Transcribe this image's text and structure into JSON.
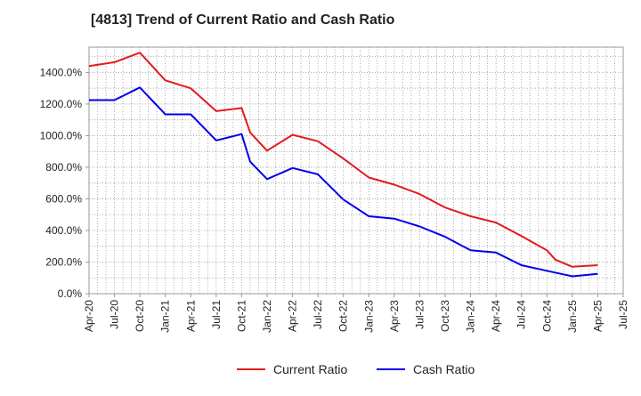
{
  "chart_data": {
    "type": "line",
    "title": "[4813]  Trend of Current Ratio and Cash Ratio",
    "xlabel": "",
    "ylabel": "",
    "categories": [
      "Apr-20",
      "Jul-20",
      "Oct-20",
      "Jan-21",
      "Apr-21",
      "Jul-21",
      "Oct-21",
      "Jan-22",
      "Apr-22",
      "Jul-22",
      "Oct-22",
      "Jan-23",
      "Apr-23",
      "Jul-23",
      "Oct-23",
      "Jan-24",
      "Apr-24",
      "Jul-24",
      "Oct-24",
      "Jan-25",
      "Apr-25",
      "Jul-25"
    ],
    "y_ticks": [
      "0.0%",
      "200.0%",
      "400.0%",
      "600.0%",
      "800.0%",
      "1000.0%",
      "1200.0%",
      "1400.0%"
    ],
    "ylim": [
      0,
      1560
    ],
    "grid": true,
    "legend": "bottom-center",
    "series": [
      {
        "name": "Current Ratio",
        "color": "#e31a1c",
        "points": [
          [
            "Apr-20",
            1440
          ],
          [
            "Jul-20",
            1465
          ],
          [
            "Oct-20",
            1525
          ],
          [
            "Jan-21",
            1350
          ],
          [
            "Apr-21",
            1300
          ],
          [
            "Jul-21",
            1155
          ],
          [
            "Oct-21",
            1175
          ],
          [
            "Nov-21",
            1020
          ],
          [
            "Jan-22",
            905
          ],
          [
            "Apr-22",
            1005
          ],
          [
            "Jul-22",
            965
          ],
          [
            "Oct-22",
            855
          ],
          [
            "Jan-23",
            735
          ],
          [
            "Apr-23",
            690
          ],
          [
            "Jul-23",
            630
          ],
          [
            "Oct-23",
            545
          ],
          [
            "Jan-24",
            490
          ],
          [
            "Apr-24",
            450
          ],
          [
            "Jul-24",
            365
          ],
          [
            "Oct-24",
            275
          ],
          [
            "Nov-24",
            215
          ],
          [
            "Jan-25",
            170
          ],
          [
            "Apr-25",
            180
          ]
        ]
      },
      {
        "name": "Cash Ratio",
        "color": "#0000ee",
        "points": [
          [
            "Apr-20",
            1225
          ],
          [
            "Jul-20",
            1225
          ],
          [
            "Oct-20",
            1305
          ],
          [
            "Jan-21",
            1135
          ],
          [
            "Apr-21",
            1135
          ],
          [
            "Jul-21",
            970
          ],
          [
            "Oct-21",
            1010
          ],
          [
            "Nov-21",
            835
          ],
          [
            "Jan-22",
            725
          ],
          [
            "Apr-22",
            795
          ],
          [
            "Jul-22",
            755
          ],
          [
            "Oct-22",
            595
          ],
          [
            "Jan-23",
            490
          ],
          [
            "Apr-23",
            475
          ],
          [
            "Jul-23",
            425
          ],
          [
            "Oct-23",
            360
          ],
          [
            "Jan-24",
            275
          ],
          [
            "Apr-24",
            260
          ],
          [
            "Jul-24",
            180
          ],
          [
            "Oct-24",
            145
          ],
          [
            "Jan-25",
            110
          ],
          [
            "Apr-25",
            125
          ]
        ]
      }
    ]
  }
}
